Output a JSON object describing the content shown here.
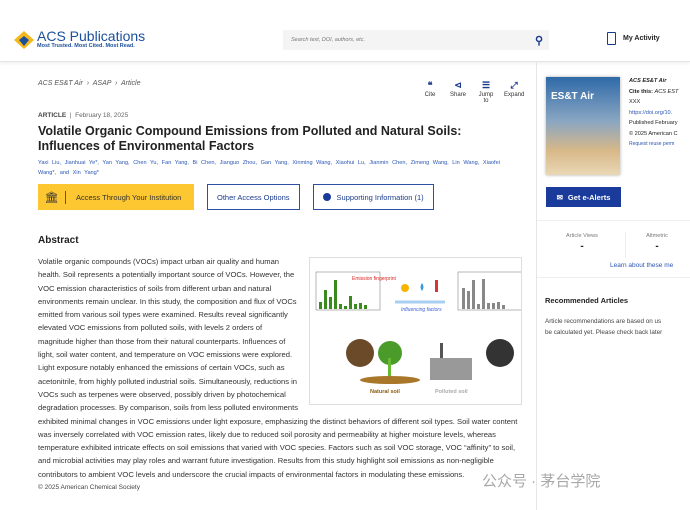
{
  "header": {
    "logo_name": "ACS Publications",
    "logo_tagline": "Most Trusted. Most Cited. Most Read.",
    "search_placeholder": "Search text, DOI, authors, etc.",
    "my_activity": "My Activity"
  },
  "breadcrumb": [
    "ACS ES&T Air",
    "ASAP",
    "Article"
  ],
  "tools": [
    {
      "icon": "quote-icon",
      "label": "Cite"
    },
    {
      "icon": "share-icon",
      "label": "Share"
    },
    {
      "icon": "list-icon",
      "label": "Jump to"
    },
    {
      "icon": "expand-icon",
      "label": "Expand"
    }
  ],
  "article": {
    "type": "ARTICLE",
    "date": "February 18, 2025",
    "title": "Volatile Organic Compound Emissions from Polluted and Natural Soils: Influences of Environmental Factors",
    "authors": [
      "Yaxi Liu,",
      "Jianhuai Ye*,",
      "Yan Yang,",
      "Chen Yu,",
      "Fan Yang,",
      "Bi Chen,",
      "Jianguo Zhou,",
      "Gan Yang,",
      "Xinming Wang,",
      "Xiaohui Lu,",
      "Jianmin Chen,",
      "Zimeng Wang,",
      "Lin Wang,",
      "Xiaofei Wang*,",
      "and Xin Yang*"
    ]
  },
  "buttons": {
    "institution": "Access Through Your Institution",
    "other": "Other Access Options",
    "supporting": "Supporting Information (1)"
  },
  "abstract": {
    "heading": "Abstract",
    "text": "Volatile organic compounds (VOCs) impact urban air quality and human health. Soil represents a potentially important source of VOCs. However, the VOC emission characteristics of soils from different urban and natural environments remain unclear. In this study, the composition and flux of VOCs emitted from various soil types were examined. Results reveal significantly elevated VOC emissions from polluted soils, with levels 2 orders of magnitude higher than those from their natural counterparts. Influences of light, soil water content, and temperature on VOC emissions were explored. Light exposure notably enhanced the emissions of certain VOCs, such as acetonitrile, from highly polluted industrial soils. Simultaneously, reductions in VOCs such as terpenes were observed, possibly driven by photochemical degradation processes. By comparison, soils from less polluted environments exhibited minimal changes in VOC emissions under light exposure, emphasizing the distinct behaviors of different soil types. Soil water content was inversely correlated with VOC emission rates, likely due to reduced soil porosity and permeability at higher moisture levels, whereas temperature exhibited intricate effects on soil emissions that varied with VOC species. Factors such as soil VOC storage, VOC “affinity” to soil, and microbial activities may play roles and warrant future investigation. Results from this study highlight soil emissions as non-negligible contributors to ambient VOC levels and underscore the crucial impacts of environmental factors in modulating these emissions.",
    "figure": {
      "emission_label": "Emission fingerprint",
      "arrow_label": "Influencing factors",
      "natural_label": "Natural soil",
      "polluted_label": "Polluted soil"
    },
    "copyright": "© 2025 American Chemical Society"
  },
  "sidebar": {
    "cover_title": "ES&T Air",
    "journal": "ACS ES&T Air",
    "cite_this": "Cite this:",
    "cite_journal": "ACS EST",
    "cite_extra": "XXX",
    "doi": "https://doi.org/10.",
    "published": "Published February",
    "copyright": "© 2025 American C",
    "reuse": "Request reuse perm",
    "alerts": "Get e-Alerts",
    "views_label": "Article Views",
    "views_value": "-",
    "altmetric_label": "Altmetric",
    "altmetric_value": "-",
    "learn": "Learn about these me",
    "rec_heading": "Recommended Articles",
    "rec_text1": "Article recommendations are based on us",
    "rec_text2": "be calculated yet. Please check back later"
  },
  "watermark": "公众号 · 茅台学院",
  "colors": {
    "brand": "#1a3b9c",
    "link": "#2b57b5",
    "institution_button": "#fcc730"
  }
}
